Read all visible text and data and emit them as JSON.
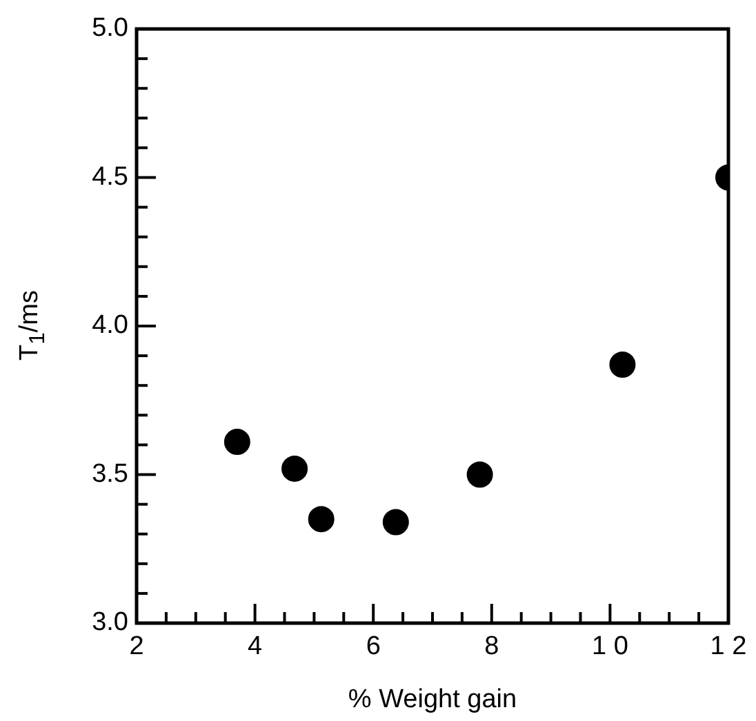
{
  "chart_data": {
    "type": "scatter",
    "xlabel": "% Weight gain",
    "ylabel": "T$_{1}$/ms",
    "x": [
      3.7,
      4.67,
      5.12,
      6.38,
      7.8,
      10.21,
      12
    ],
    "series": [
      {
        "color": "#000000",
        "values": [
          3.61,
          3.52,
          3.35,
          3.34,
          3.5,
          3.87,
          4.5
        ]
      }
    ],
    "marker": "circle",
    "grid": false,
    "legend": false,
    "xlim": [
      2,
      12
    ],
    "xticks": [
      2,
      {
        "value": 2.5,
        "label": null
      },
      {
        "value": 3,
        "label": null
      },
      {
        "value": 3.5,
        "label": null
      },
      4,
      {
        "value": 4.5,
        "label": null
      },
      {
        "value": 5,
        "label": null
      },
      {
        "value": 5.5,
        "label": null
      },
      6,
      {
        "value": 6.5,
        "label": null
      },
      {
        "value": 7,
        "label": null
      },
      {
        "value": 7.5,
        "label": null
      },
      8,
      {
        "value": 8.5,
        "label": null
      },
      {
        "value": 9,
        "label": null
      },
      {
        "value": 9.5,
        "label": null
      },
      {
        "value": 10,
        "label": "1 0"
      },
      {
        "value": 10.5,
        "label": null
      },
      {
        "value": 11,
        "label": null
      },
      {
        "value": 11.5,
        "label": null
      },
      {
        "value": 12,
        "label": "1 2"
      }
    ],
    "ylim": [
      3,
      5
    ],
    "yticks": [
      {
        "value": 3,
        "label": "3.0"
      },
      {
        "value": 3.1,
        "label": null
      },
      {
        "value": 3.2,
        "label": null
      },
      {
        "value": 3.3,
        "label": null
      },
      {
        "value": 3.4,
        "label": null
      },
      3.5,
      {
        "value": 3.6,
        "label": null
      },
      {
        "value": 3.7,
        "label": null
      },
      {
        "value": 3.8,
        "label": null
      },
      {
        "value": 3.9,
        "label": null
      },
      {
        "value": 4,
        "label": "4.0"
      },
      {
        "value": 4.1,
        "label": null
      },
      {
        "value": 4.2,
        "label": null
      },
      {
        "value": 4.3,
        "label": null
      },
      {
        "value": 4.4,
        "label": null
      },
      4.5,
      {
        "value": 4.6,
        "label": null
      },
      {
        "value": 4.7,
        "label": null
      },
      {
        "value": 4.8,
        "label": null
      },
      {
        "value": 4.9,
        "label": null
      },
      {
        "value": 5,
        "label": "5.0"
      }
    ]
  }
}
